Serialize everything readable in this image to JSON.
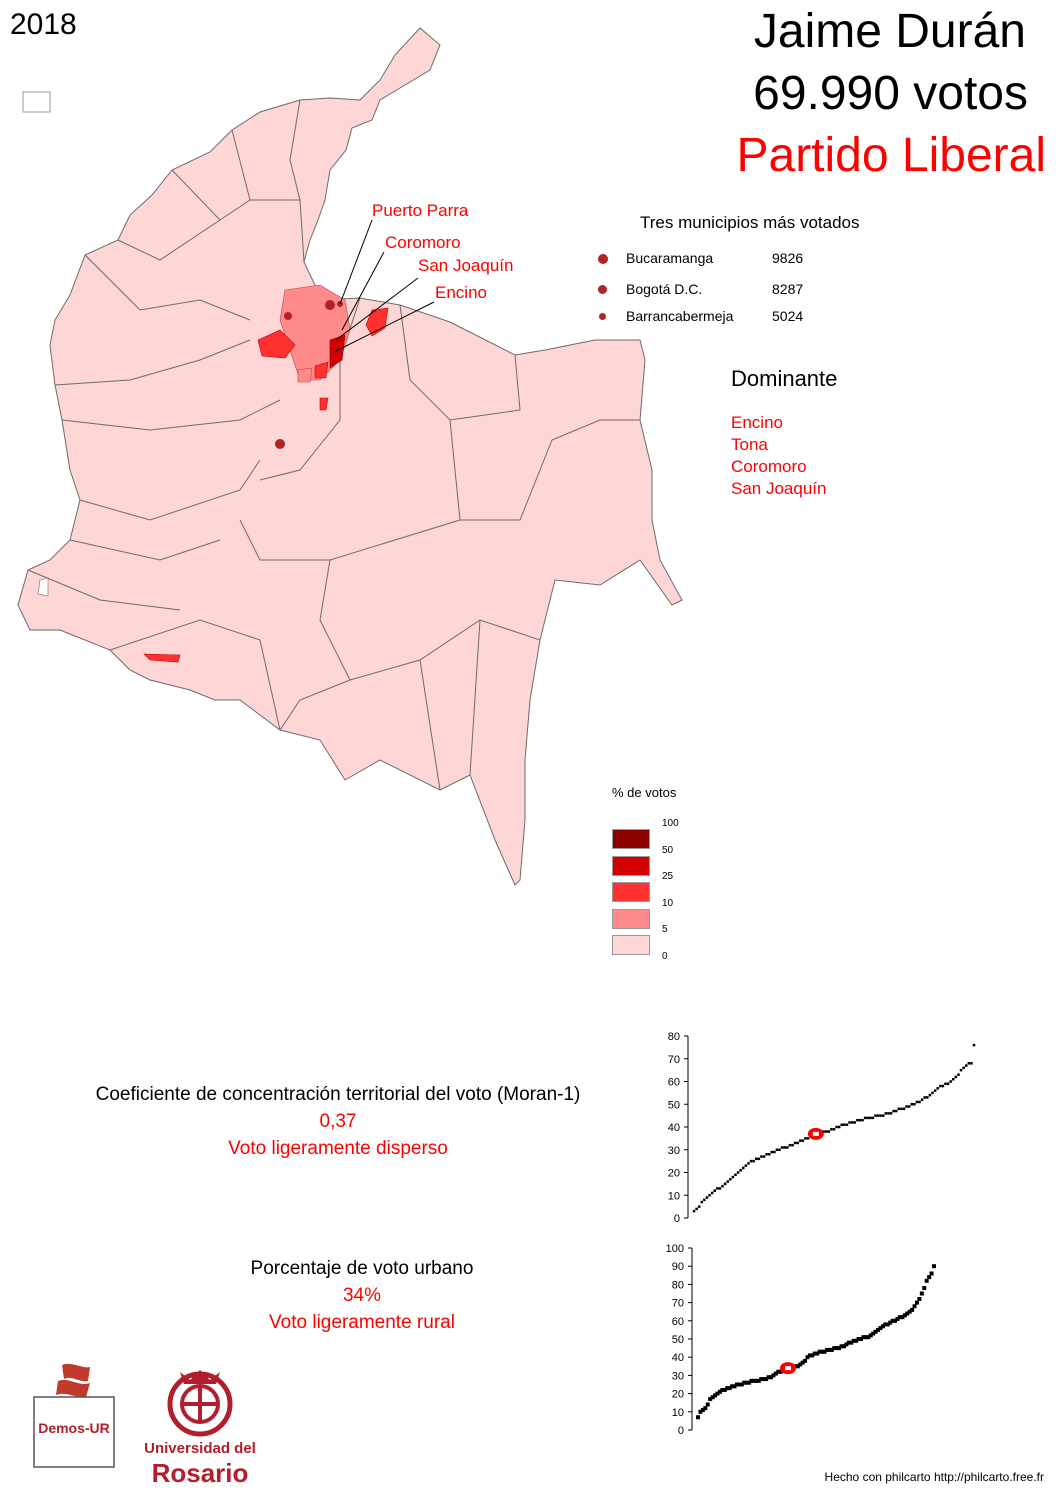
{
  "year": "2018",
  "candidate": {
    "name": "Jaime Durán",
    "votes": "69.990 votos",
    "party": "Partido Liberal"
  },
  "colors": {
    "base": "#ffd6d6",
    "accent": "#ff0000",
    "dot": "#b22222",
    "border": "#6b6b6b"
  },
  "top_municipalities": {
    "title": "Tres municipios más votados",
    "items": [
      {
        "name": "Bucaramanga",
        "value": "9826"
      },
      {
        "name": "Bogotá D.C.",
        "value": "8287"
      },
      {
        "name": "Barrancabermeja",
        "value": "5024"
      }
    ]
  },
  "dominant": {
    "title": "Dominante",
    "items": [
      "Encino",
      "Tona",
      "Coromoro",
      "San Joaquín"
    ]
  },
  "callouts": [
    "Puerto Parra",
    "Coromoro",
    "San Joaquín",
    "Encino"
  ],
  "legend": {
    "title": "% de votos",
    "breaks": [
      "100",
      "50",
      "25",
      "10",
      "5",
      "0"
    ],
    "colors": [
      "#8b0000",
      "#d40000",
      "#ff3030",
      "#ff8a8a",
      "#ffd6d6"
    ]
  },
  "moran": {
    "label": "Coeficiente de concentración territorial del voto (Moran-1)",
    "value": "0,37",
    "description": "Voto ligeramente disperso"
  },
  "urban": {
    "label": "Porcentaje de voto urbano",
    "value": "34%",
    "description": "Voto ligeramente rural"
  },
  "chart_data": [
    {
      "type": "scatter",
      "title": "",
      "xlabel": "",
      "ylabel": "",
      "ylim": [
        0,
        80
      ],
      "yticks": [
        "0",
        "10",
        "20",
        "30",
        "40",
        "50",
        "60",
        "70",
        "80"
      ],
      "highlight_y": 37,
      "y_sorted": [
        3,
        4,
        5,
        7,
        8,
        9,
        10,
        11,
        12,
        13,
        13,
        14,
        15,
        16,
        17,
        18,
        19,
        20,
        21,
        22,
        23,
        24,
        25,
        25,
        26,
        26,
        27,
        27,
        28,
        28,
        29,
        29,
        30,
        30,
        31,
        31,
        31,
        32,
        32,
        33,
        33,
        34,
        34,
        35,
        35,
        36,
        36,
        37,
        37,
        37,
        38,
        38,
        38,
        39,
        39,
        40,
        40,
        41,
        41,
        41,
        42,
        42,
        42,
        43,
        43,
        43,
        44,
        44,
        44,
        44,
        45,
        45,
        45,
        45,
        46,
        46,
        46,
        47,
        47,
        48,
        48,
        48,
        49,
        49,
        50,
        50,
        51,
        51,
        52,
        53,
        53,
        54,
        55,
        56,
        57,
        58,
        58,
        59,
        59,
        60,
        61,
        62,
        63,
        65,
        66,
        67,
        68,
        68,
        76
      ]
    },
    {
      "type": "scatter",
      "title": "",
      "xlabel": "",
      "ylabel": "",
      "ylim": [
        0,
        100
      ],
      "yticks": [
        "0",
        "10",
        "20",
        "30",
        "40",
        "50",
        "60",
        "70",
        "80",
        "90",
        "100"
      ],
      "highlight_y": 34,
      "y_sorted": [
        7,
        10,
        11,
        12,
        14,
        17,
        18,
        19,
        20,
        21,
        22,
        22,
        23,
        23,
        24,
        24,
        25,
        25,
        25,
        26,
        26,
        26,
        27,
        27,
        27,
        27,
        28,
        28,
        28,
        29,
        29,
        30,
        31,
        32,
        32,
        33,
        33,
        34,
        34,
        34,
        35,
        35,
        36,
        37,
        38,
        40,
        41,
        41,
        42,
        42,
        43,
        43,
        43,
        44,
        44,
        44,
        45,
        45,
        45,
        46,
        46,
        47,
        48,
        48,
        49,
        49,
        50,
        50,
        51,
        51,
        51,
        52,
        53,
        54,
        55,
        56,
        57,
        58,
        58,
        59,
        60,
        60,
        61,
        62,
        62,
        63,
        64,
        65,
        66,
        68,
        70,
        72,
        75,
        78,
        82,
        84,
        86,
        90
      ]
    }
  ],
  "credit": "Hecho con philcarto http://philcarto.free.fr",
  "logos": {
    "demos": "Demos-UR",
    "rosario_line1": "Universidad del",
    "rosario_line2": "Rosario"
  }
}
